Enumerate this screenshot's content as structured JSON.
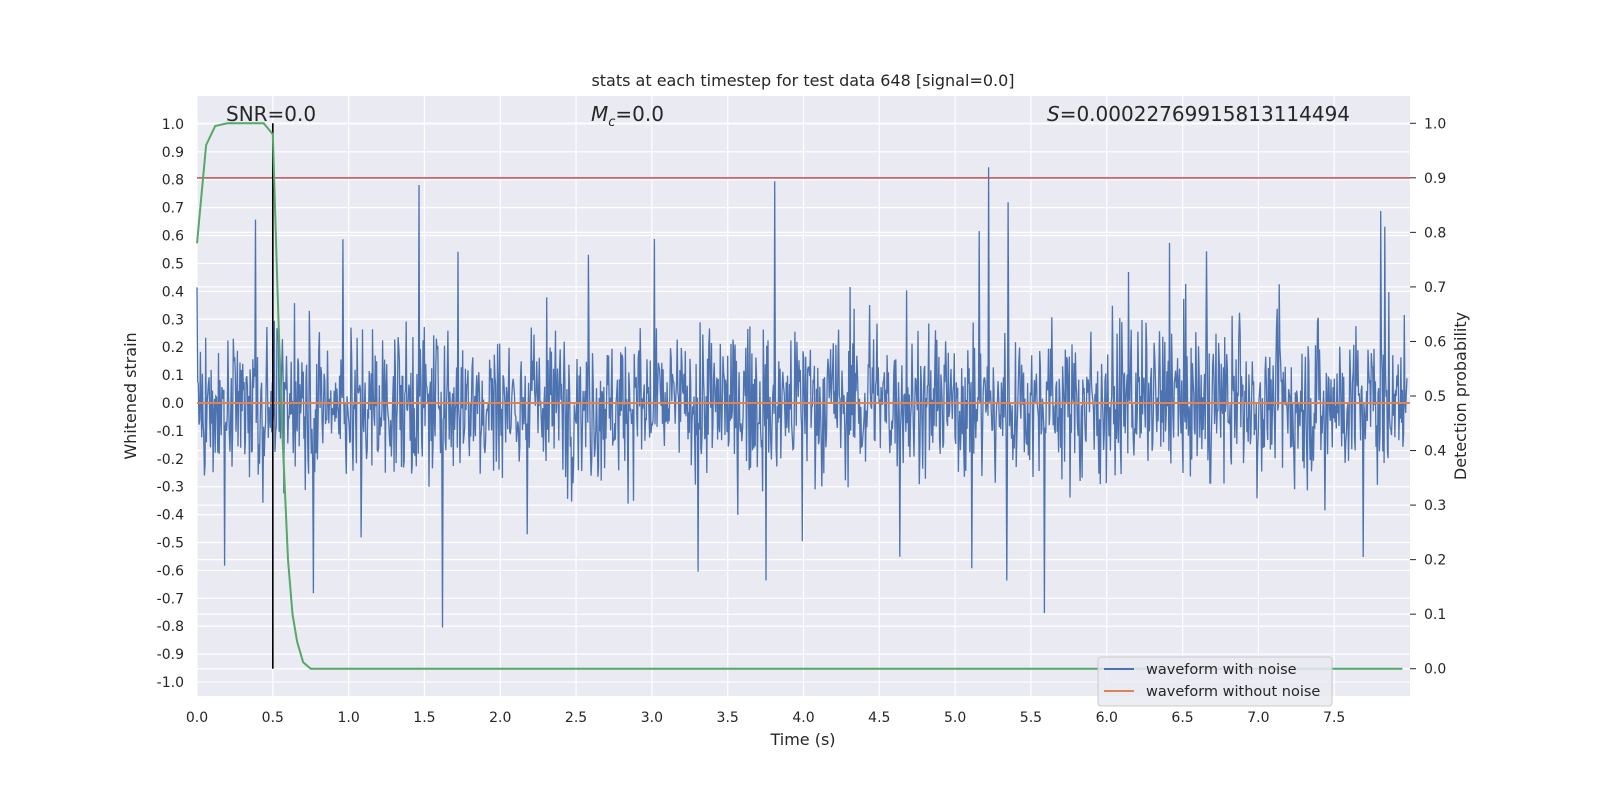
{
  "chart_data": {
    "type": "line",
    "title": "stats at each timestep for test data 648 [signal=0.0]",
    "xlabel": "Time (s)",
    "ylabel": "Whitened strain",
    "ylabel_right": "Detection probability",
    "xlim": [
      0.0,
      8.0
    ],
    "ylim": [
      -1.05,
      1.1
    ],
    "ylim_right": [
      -0.05,
      1.05
    ],
    "xticks": [
      "0.0",
      "0.5",
      "1.0",
      "1.5",
      "2.0",
      "2.5",
      "3.0",
      "3.5",
      "4.0",
      "4.5",
      "5.0",
      "5.5",
      "6.0",
      "6.5",
      "7.0",
      "7.5"
    ],
    "yticks": [
      "1.0",
      "0.9",
      "0.8",
      "0.7",
      "0.6",
      "0.5",
      "0.4",
      "0.3",
      "0.2",
      "0.1",
      "0.0",
      "-0.1",
      "-0.2",
      "-0.3",
      "-0.4",
      "-0.5",
      "-0.6",
      "-0.7",
      "-0.8",
      "-0.9",
      "-1.0"
    ],
    "yticks_right": [
      "1.0",
      "0.9",
      "0.8",
      "0.7",
      "0.6",
      "0.5",
      "0.4",
      "0.3",
      "0.2",
      "0.1",
      "0.0"
    ],
    "annotations": {
      "snr": "SNR=0.0",
      "mc_prefix": "M",
      "mc_sub": "c",
      "mc_value": "=0.0",
      "s_prefix": "S",
      "s_value": "=0.00022769915813114494"
    },
    "legend": {
      "position": "lower-right",
      "entries": [
        {
          "name": "waveform with noise",
          "color": "#4c72b0"
        },
        {
          "name": "waveform without noise",
          "color": "#dd8452"
        }
      ]
    },
    "threshold_right": 0.9,
    "marker_time": 0.5,
    "noise_waveform": {
      "color": "#4c72b0",
      "typical_amplitude": 0.3,
      "max": 1.0,
      "min": -0.93
    },
    "clean_waveform": {
      "color": "#dd8452",
      "value": 0.0
    },
    "detection_probability": {
      "color": "#55a868",
      "x": [
        0.0,
        0.06,
        0.12,
        0.2,
        0.3,
        0.38,
        0.44,
        0.5,
        0.53,
        0.56,
        0.6,
        0.63,
        0.66,
        0.7,
        0.75,
        0.85,
        7.95
      ],
      "y": [
        0.78,
        0.96,
        0.995,
        1.0,
        1.0,
        1.0,
        1.0,
        0.98,
        0.7,
        0.45,
        0.2,
        0.1,
        0.05,
        0.012,
        0.0,
        0.0,
        0.0
      ]
    },
    "threshold_color": "#c44e52",
    "marker_color": "#000000",
    "grid": true
  }
}
